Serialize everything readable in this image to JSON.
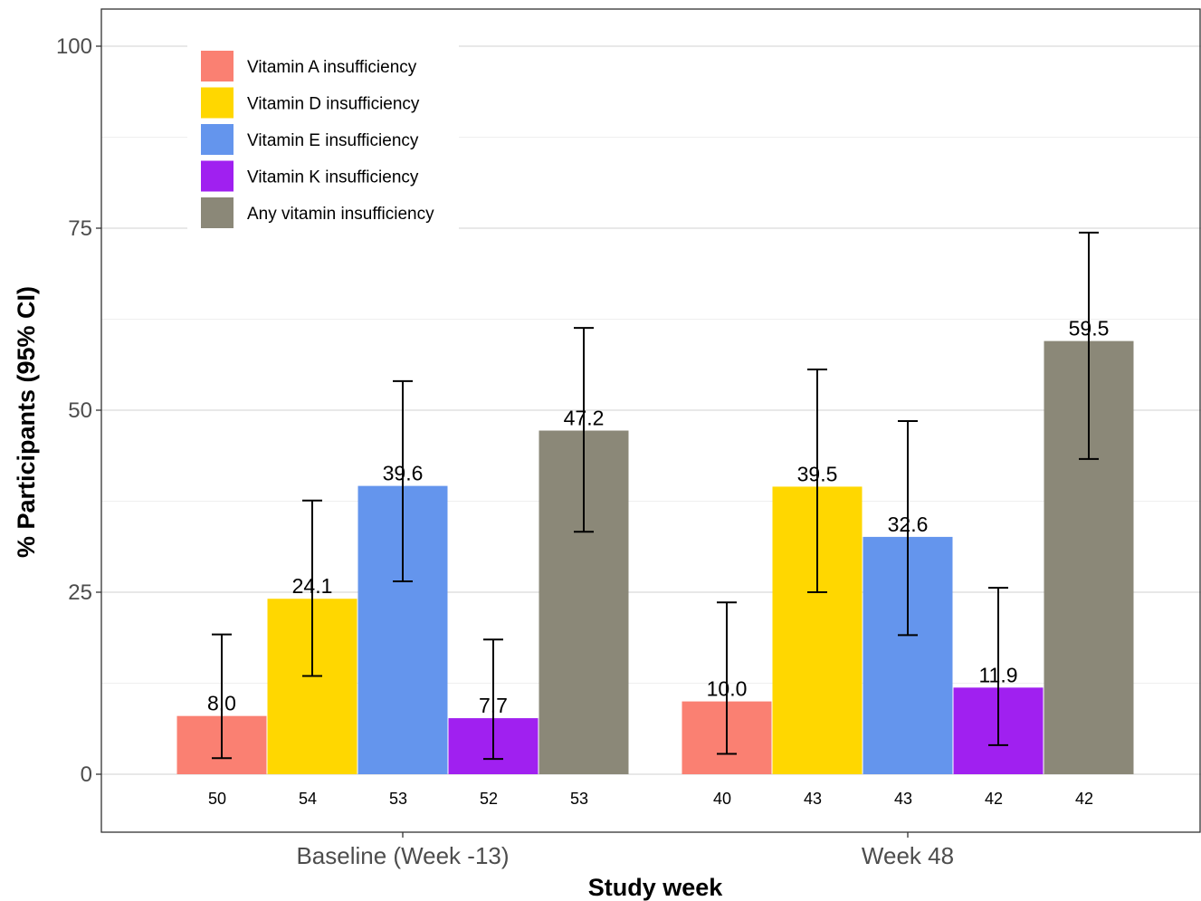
{
  "chart_data": {
    "type": "bar",
    "xlabel": "Study week",
    "ylabel": "% Participants (95% CI)",
    "ylim": [
      -7,
      105
    ],
    "yticks": [
      0,
      25,
      50,
      75,
      100
    ],
    "grid": true,
    "legend_position": "top-left",
    "categories": [
      "Baseline (Week -13)",
      "Week 48"
    ],
    "series": [
      {
        "name": "Vitamin A insufficiency",
        "color": "#FA8072",
        "values": [
          8.0,
          10.0
        ],
        "labels": [
          "8.0",
          "10.0"
        ],
        "ci_low": [
          2.2,
          2.8
        ],
        "ci_high": [
          19.2,
          23.6
        ],
        "n": [
          "50",
          "40"
        ]
      },
      {
        "name": "Vitamin D insufficiency",
        "color": "#FFD700",
        "values": [
          24.1,
          39.5
        ],
        "labels": [
          "24.1",
          "39.5"
        ],
        "ci_low": [
          13.5,
          25.0
        ],
        "ci_high": [
          37.6,
          55.6
        ],
        "n": [
          "54",
          "43"
        ]
      },
      {
        "name": "Vitamin E insufficiency",
        "color": "#6495ED",
        "values": [
          39.6,
          32.6
        ],
        "labels": [
          "39.6",
          "32.6"
        ],
        "ci_low": [
          26.5,
          19.1
        ],
        "ci_high": [
          54.0,
          48.5
        ],
        "n": [
          "53",
          "43"
        ]
      },
      {
        "name": "Vitamin K insufficiency",
        "color": "#A020F0",
        "values": [
          7.7,
          11.9
        ],
        "labels": [
          "7.7",
          "11.9"
        ],
        "ci_low": [
          2.1,
          4.0
        ],
        "ci_high": [
          18.5,
          25.6
        ],
        "n": [
          "52",
          "42"
        ]
      },
      {
        "name": "Any vitamin insufficiency",
        "color": "#8B8878",
        "values": [
          47.2,
          59.5
        ],
        "labels": [
          "47.2",
          "59.5"
        ],
        "ci_low": [
          33.3,
          43.3
        ],
        "ci_high": [
          61.3,
          74.4
        ],
        "n": [
          "53",
          "42"
        ]
      }
    ]
  }
}
